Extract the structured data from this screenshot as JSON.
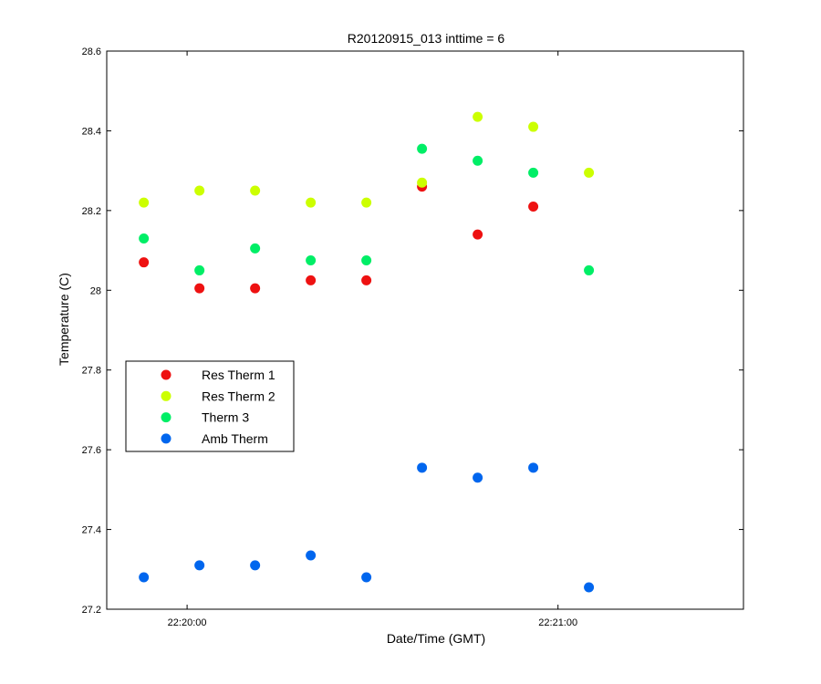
{
  "chart_data": {
    "type": "scatter",
    "title": "R20120915_013 inttime = 6",
    "xlabel": "Date/Time (GMT)",
    "ylabel": "Temperature (C)",
    "x_unit": "time (HH:MM:SS, GMT)",
    "xlim": [
      "22:19:47",
      "22:21:30"
    ],
    "ylim": [
      27.2,
      28.6
    ],
    "xticks": [
      {
        "value": "22:20:00",
        "label": "22:20:00"
      },
      {
        "value": "22:21:00",
        "label": "22:21:00"
      }
    ],
    "yticks": [
      27.2,
      27.4,
      27.6,
      27.8,
      28.0,
      28.2,
      28.4,
      28.6
    ],
    "ytick_labels": [
      "27.2",
      "27.4",
      "27.6",
      "27.8",
      "28",
      "28.2",
      "28.4",
      "28.6"
    ],
    "x": [
      "22:19:53",
      "22:20:02",
      "22:20:11",
      "22:20:20",
      "22:20:29",
      "22:20:38",
      "22:20:47",
      "22:20:56",
      "22:21:05"
    ],
    "grid": false,
    "legend_position": "left-middle",
    "series": [
      {
        "name": "Res Therm 1",
        "color": "#ee1111",
        "values": [
          28.07,
          28.005,
          28.005,
          28.025,
          28.025,
          28.26,
          28.14,
          28.21,
          null
        ]
      },
      {
        "name": "Res Therm 2",
        "color": "#ccff00",
        "values": [
          28.22,
          28.25,
          28.25,
          28.22,
          28.22,
          28.27,
          28.435,
          28.41,
          28.295
        ]
      },
      {
        "name": "Therm 3",
        "color": "#00ee66",
        "values": [
          28.13,
          28.05,
          28.105,
          28.075,
          28.075,
          28.355,
          28.325,
          28.295,
          28.05
        ]
      },
      {
        "name": "Amb Therm",
        "color": "#0066ee",
        "values": [
          27.28,
          27.31,
          27.31,
          27.335,
          27.28,
          27.555,
          27.53,
          27.555,
          27.255
        ]
      }
    ]
  }
}
